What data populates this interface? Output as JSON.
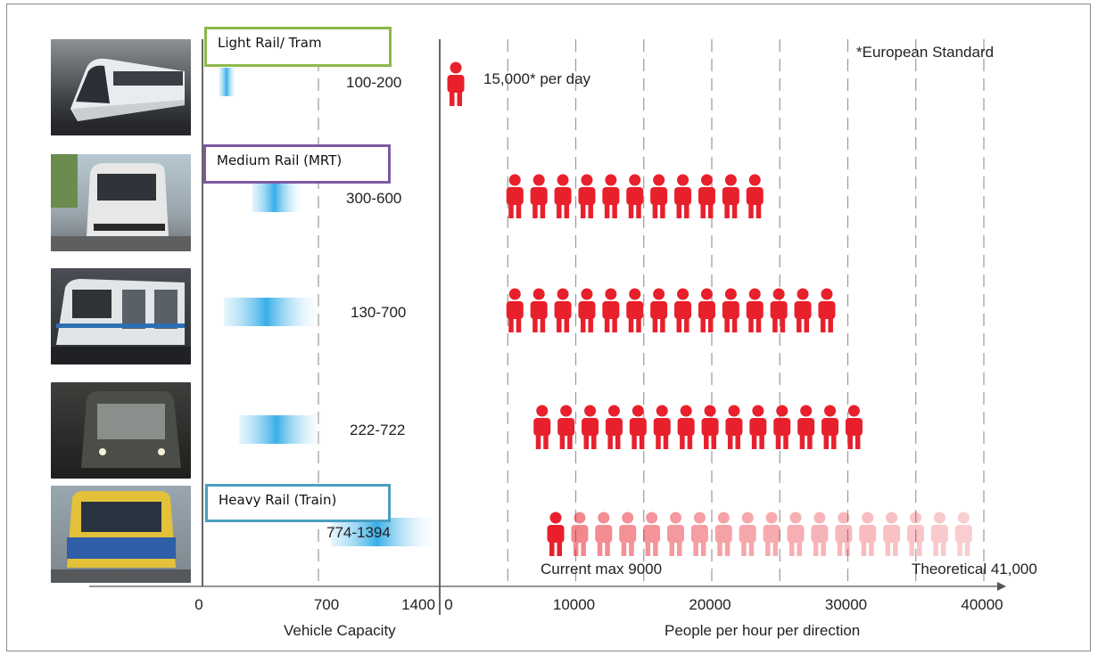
{
  "chart_data": [
    {
      "type": "bar",
      "categories": [
        "Light Rail/ Tram",
        "Medium Rail (MRT)",
        "",
        "",
        "Heavy Rail (Train)"
      ],
      "ranges": [
        [
          100,
          200
        ],
        [
          300,
          600
        ],
        [
          130,
          700
        ],
        [
          222,
          722
        ],
        [
          774,
          1394
        ]
      ],
      "range_labels": [
        "100-200",
        "300-600",
        "130-700",
        "222-722",
        "774-1394"
      ],
      "xlabel": "Vehicle Capacity",
      "xticks": [
        0,
        700,
        1400
      ],
      "xlim": [
        0,
        1400
      ],
      "orientation": "horizontal"
    },
    {
      "type": "bar",
      "style": "pictogram",
      "categories": [
        "Light Rail/ Tram",
        "Medium Rail (MRT)",
        "",
        "",
        "Heavy Rail (Train)"
      ],
      "ranges": [
        [
          0,
          0
        ],
        [
          5000,
          25000
        ],
        [
          5000,
          30000
        ],
        [
          7000,
          31000
        ],
        [
          8000,
          40000
        ]
      ],
      "xlabel": "People per hour per direction",
      "xticks": [
        0,
        10000,
        20000,
        30000,
        40000
      ],
      "xlim": [
        0,
        40000
      ],
      "grid": true,
      "annotations": {
        "standard_note": "*European Standard",
        "light_rail_note": "15,000* per day",
        "current_max": "Current max 9000",
        "theoretical": "Theoretical  41,000",
        "current_max_value": 9000
      }
    }
  ]
}
